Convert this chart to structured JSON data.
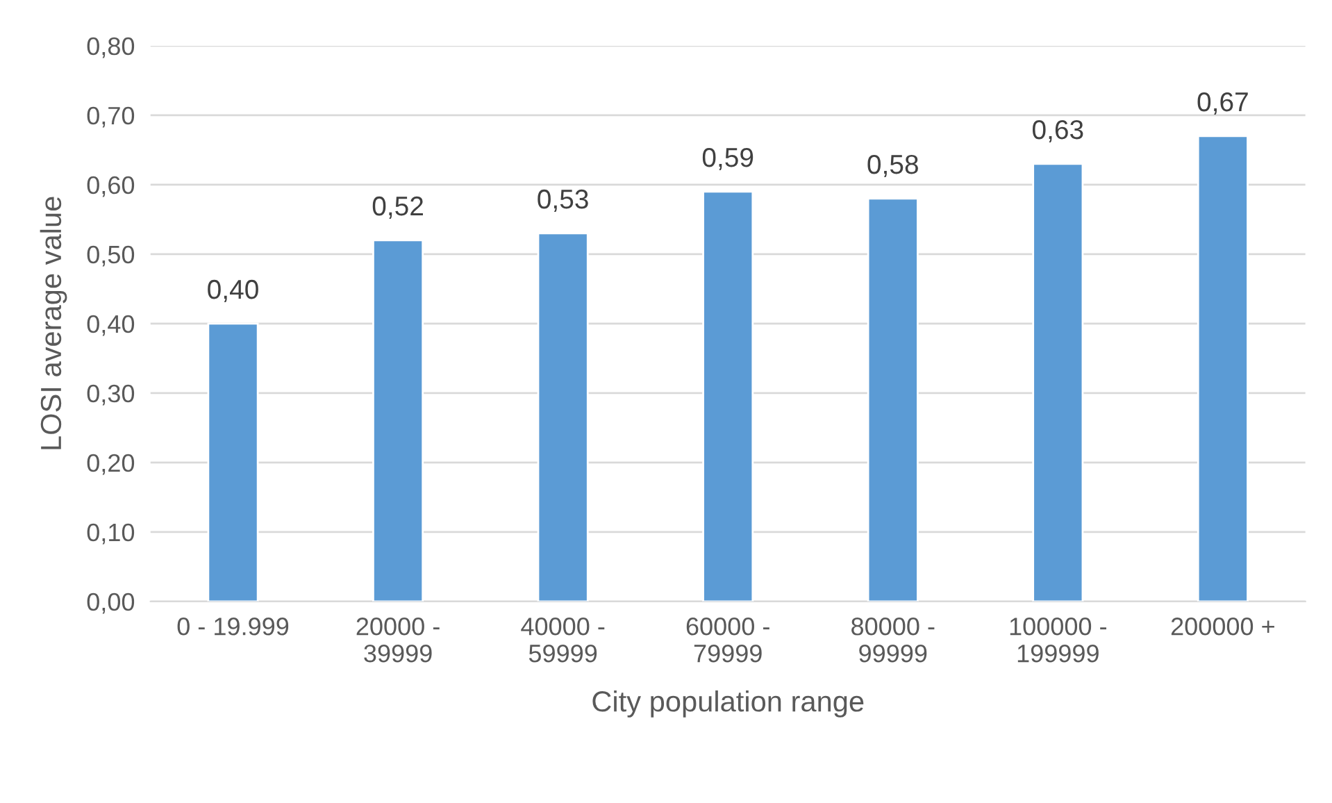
{
  "chart_data": {
    "type": "bar",
    "xlabel": "City population range",
    "ylabel": "LOSI average value",
    "categories": [
      "0 - 19.999",
      "20000 -\n39999",
      "40000 -\n59999",
      "60000 -\n79999",
      "80000 -\n99999",
      "100000 -\n199999",
      "200000 +"
    ],
    "values": [
      0.4,
      0.52,
      0.53,
      0.59,
      0.58,
      0.63,
      0.67
    ],
    "value_labels": [
      "0,40",
      "0,52",
      "0,53",
      "0,59",
      "0,58",
      "0,63",
      "0,67"
    ],
    "color": "#5b9bd5",
    "ylim": [
      0,
      0.8
    ],
    "yticks": [
      {
        "value": 0,
        "label": "0,00"
      },
      {
        "value": 0.1,
        "label": "0,10"
      },
      {
        "value": 0.2,
        "label": "0,20"
      },
      {
        "value": 0.3,
        "label": "0,30"
      },
      {
        "value": 0.4,
        "label": "0,40"
      },
      {
        "value": 0.5,
        "label": "0,50"
      },
      {
        "value": 0.6,
        "label": "0,60"
      },
      {
        "value": 0.7,
        "label": "0,70"
      },
      {
        "value": 0.8,
        "label": "0,80"
      }
    ],
    "grid": "y"
  }
}
